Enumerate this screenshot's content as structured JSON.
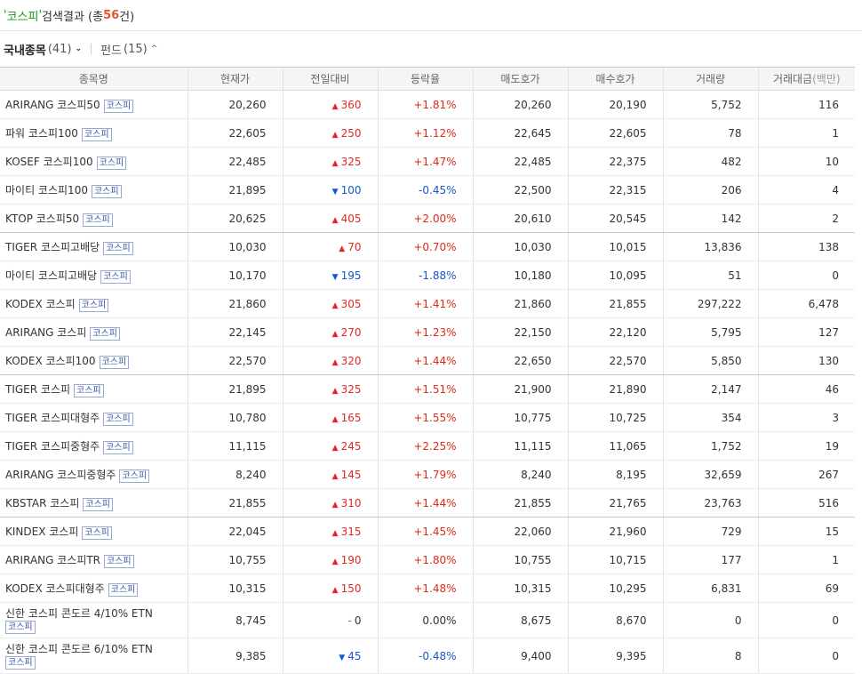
{
  "header": {
    "quote_open": "'",
    "query": "코스피",
    "quote_close": "'",
    "label": "검색결과",
    "count_prefix": "(총",
    "count": "56",
    "count_suffix": "건)"
  },
  "tabs": [
    {
      "label": "국내종목",
      "count": "(41)",
      "chevron": "⌄"
    },
    {
      "label": "펀드",
      "count": "(15)",
      "chevron": "^"
    }
  ],
  "columns": [
    "종목명",
    "현재가",
    "전일대비",
    "등락율",
    "매도호가",
    "매수호가",
    "거래량",
    "거래대금"
  ],
  "column_unit": "(백만)",
  "rows": [
    {
      "name": "ARIRANG 코스피50",
      "badge": "코스피",
      "price": "20,260",
      "dir": "up",
      "change": "360",
      "rate": "+1.81%",
      "ask": "20,260",
      "bid": "20,190",
      "volume": "5,752",
      "amount": "116"
    },
    {
      "name": "파워 코스피100",
      "badge": "코스피",
      "price": "22,605",
      "dir": "up",
      "change": "250",
      "rate": "+1.12%",
      "ask": "22,645",
      "bid": "22,605",
      "volume": "78",
      "amount": "1"
    },
    {
      "name": "KOSEF 코스피100",
      "badge": "코스피",
      "price": "22,485",
      "dir": "up",
      "change": "325",
      "rate": "+1.47%",
      "ask": "22,485",
      "bid": "22,375",
      "volume": "482",
      "amount": "10"
    },
    {
      "name": "마이티 코스피100",
      "badge": "코스피",
      "price": "21,895",
      "dir": "down",
      "change": "100",
      "rate": "-0.45%",
      "ask": "22,500",
      "bid": "22,315",
      "volume": "206",
      "amount": "4"
    },
    {
      "name": "KTOP 코스피50",
      "badge": "코스피",
      "price": "20,625",
      "dir": "up",
      "change": "405",
      "rate": "+2.00%",
      "ask": "20,610",
      "bid": "20,545",
      "volume": "142",
      "amount": "2"
    },
    {
      "name": "TIGER 코스피고배당",
      "badge": "코스피",
      "price": "10,030",
      "dir": "up",
      "change": "70",
      "rate": "+0.70%",
      "ask": "10,030",
      "bid": "10,015",
      "volume": "13,836",
      "amount": "138"
    },
    {
      "name": "마이티 코스피고배당",
      "badge": "코스피",
      "price": "10,170",
      "dir": "down",
      "change": "195",
      "rate": "-1.88%",
      "ask": "10,180",
      "bid": "10,095",
      "volume": "51",
      "amount": "0"
    },
    {
      "name": "KODEX 코스피",
      "badge": "코스피",
      "price": "21,860",
      "dir": "up",
      "change": "305",
      "rate": "+1.41%",
      "ask": "21,860",
      "bid": "21,855",
      "volume": "297,222",
      "amount": "6,478"
    },
    {
      "name": "ARIRANG 코스피",
      "badge": "코스피",
      "price": "22,145",
      "dir": "up",
      "change": "270",
      "rate": "+1.23%",
      "ask": "22,150",
      "bid": "22,120",
      "volume": "5,795",
      "amount": "127"
    },
    {
      "name": "KODEX 코스피100",
      "badge": "코스피",
      "price": "22,570",
      "dir": "up",
      "change": "320",
      "rate": "+1.44%",
      "ask": "22,650",
      "bid": "22,570",
      "volume": "5,850",
      "amount": "130"
    },
    {
      "name": "TIGER 코스피",
      "badge": "코스피",
      "price": "21,895",
      "dir": "up",
      "change": "325",
      "rate": "+1.51%",
      "ask": "21,900",
      "bid": "21,890",
      "volume": "2,147",
      "amount": "46"
    },
    {
      "name": "TIGER 코스피대형주",
      "badge": "코스피",
      "price": "10,780",
      "dir": "up",
      "change": "165",
      "rate": "+1.55%",
      "ask": "10,775",
      "bid": "10,725",
      "volume": "354",
      "amount": "3"
    },
    {
      "name": "TIGER 코스피중형주",
      "badge": "코스피",
      "price": "11,115",
      "dir": "up",
      "change": "245",
      "rate": "+2.25%",
      "ask": "11,115",
      "bid": "11,065",
      "volume": "1,752",
      "amount": "19"
    },
    {
      "name": "ARIRANG 코스피중형주",
      "badge": "코스피",
      "price": "8,240",
      "dir": "up",
      "change": "145",
      "rate": "+1.79%",
      "ask": "8,240",
      "bid": "8,195",
      "volume": "32,659",
      "amount": "267"
    },
    {
      "name": "KBSTAR 코스피",
      "badge": "코스피",
      "price": "21,855",
      "dir": "up",
      "change": "310",
      "rate": "+1.44%",
      "ask": "21,855",
      "bid": "21,765",
      "volume": "23,763",
      "amount": "516"
    },
    {
      "name": "KINDEX 코스피",
      "badge": "코스피",
      "price": "22,045",
      "dir": "up",
      "change": "315",
      "rate": "+1.45%",
      "ask": "22,060",
      "bid": "21,960",
      "volume": "729",
      "amount": "15"
    },
    {
      "name": "ARIRANG 코스피TR",
      "badge": "코스피",
      "price": "10,755",
      "dir": "up",
      "change": "190",
      "rate": "+1.80%",
      "ask": "10,755",
      "bid": "10,715",
      "volume": "177",
      "amount": "1"
    },
    {
      "name": "KODEX 코스피대형주",
      "badge": "코스피",
      "price": "10,315",
      "dir": "up",
      "change": "150",
      "rate": "+1.48%",
      "ask": "10,315",
      "bid": "10,295",
      "volume": "6,831",
      "amount": "69"
    },
    {
      "name": "신한 코스피 콘도르 4/10% ETN",
      "badge": "코스피",
      "price": "8,745",
      "dir": "flat",
      "change": "0",
      "rate": "0.00%",
      "ask": "8,675",
      "bid": "8,670",
      "volume": "0",
      "amount": "0"
    },
    {
      "name": "신한 코스피 콘도르 6/10% ETN",
      "badge": "코스피",
      "price": "9,385",
      "dir": "down",
      "change": "45",
      "rate": "-0.48%",
      "ask": "9,400",
      "bid": "9,395",
      "volume": "8",
      "amount": "0"
    }
  ],
  "colors": {
    "up": "#e0291e",
    "down": "#1658c8",
    "query": "#119a1b",
    "count": "#e9532b"
  },
  "icons": {
    "up": "triangle-up-icon",
    "down": "triangle-down-icon",
    "flat": "dash-icon"
  }
}
